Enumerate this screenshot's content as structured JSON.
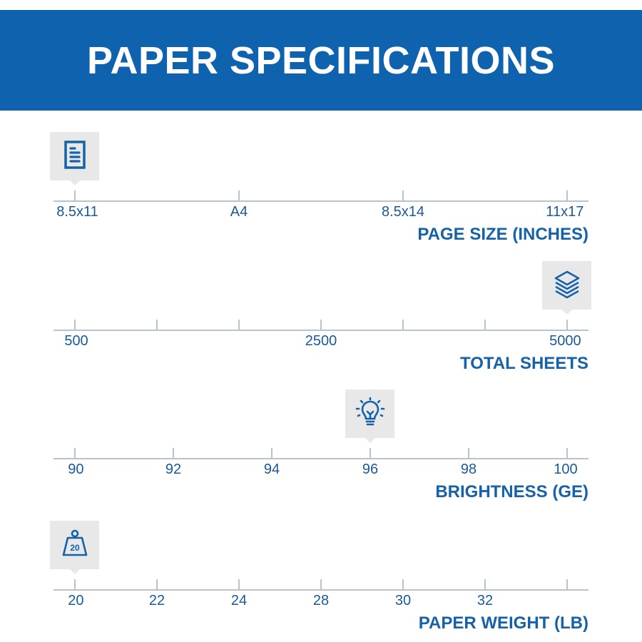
{
  "header": {
    "title": "PAPER SPECIFICATIONS"
  },
  "colors": {
    "header_bg": "#0f62ad",
    "accent": "#1662a8",
    "axis": "#b9c3cc",
    "marker_bg": "#e8e8e8"
  },
  "specs": [
    {
      "title": "PAGE SIZE (INCHES)",
      "icon": "document-icon",
      "ticks": 4,
      "labels": [
        {
          "text": "8.5x11",
          "index": 0
        },
        {
          "text": "A4",
          "index": 1
        },
        {
          "text": "8.5x14",
          "index": 2
        },
        {
          "text": "11x17",
          "index": 3
        }
      ],
      "selected_index": 0,
      "selected_value": "8.5x11"
    },
    {
      "title": "TOTAL SHEETS",
      "icon": "paper-stack-icon",
      "ticks": 7,
      "labels": [
        {
          "text": "500",
          "index": 0
        },
        {
          "text": "2500",
          "index": 3
        },
        {
          "text": "5000",
          "index": 6
        }
      ],
      "selected_index": 6,
      "selected_value": "5000"
    },
    {
      "title": "BRIGHTNESS (GE)",
      "icon": "lightbulb-icon",
      "ticks": 6,
      "labels": [
        {
          "text": "90",
          "index": 0
        },
        {
          "text": "92",
          "index": 1
        },
        {
          "text": "94",
          "index": 2
        },
        {
          "text": "96",
          "index": 3
        },
        {
          "text": "98",
          "index": 4
        },
        {
          "text": "100",
          "index": 5
        }
      ],
      "selected_index": 3,
      "selected_value": "96"
    },
    {
      "title": "PAPER WEIGHT (LB)",
      "icon": "weight-icon",
      "icon_text": "20",
      "ticks": 7,
      "labels": [
        {
          "text": "20",
          "index": 0
        },
        {
          "text": "22",
          "index": 1
        },
        {
          "text": "24",
          "index": 2
        },
        {
          "text": "28",
          "index": 3
        },
        {
          "text": "30",
          "index": 4
        },
        {
          "text": "32",
          "index": 5
        }
      ],
      "selected_index": 0,
      "selected_value": "20"
    }
  ]
}
